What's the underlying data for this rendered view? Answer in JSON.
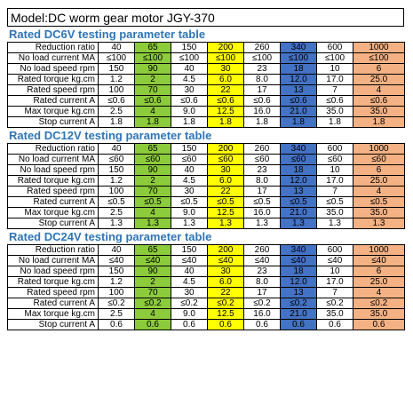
{
  "model_title": "Model:DC worm gear motor JGY-370",
  "column_colors": [
    "",
    "#8CCB3B",
    "",
    "#FFFF00",
    "",
    "#4472C4",
    "",
    "#F4B183"
  ],
  "sections": [
    {
      "title": "Rated DC6V testing parameter table",
      "rows": [
        {
          "label": "Reduction ratio",
          "values": [
            "40",
            "65",
            "150",
            "200",
            "260",
            "340",
            "600",
            "1000"
          ]
        },
        {
          "label": "No load current MA",
          "values": [
            "≤100",
            "≤100",
            "≤100",
            "≤100",
            "≤100",
            "≤100",
            "≤100",
            "≤100"
          ]
        },
        {
          "label": "No load speed rpm",
          "values": [
            "150",
            "90",
            "40",
            "30",
            "23",
            "18",
            "10",
            "6"
          ]
        },
        {
          "label": "Rated torque kg.cm",
          "values": [
            "1.2",
            "2",
            "4.5",
            "6.0",
            "8.0",
            "12.0",
            "17.0",
            "25.0"
          ]
        },
        {
          "label": "Rated speed rpm",
          "values": [
            "100",
            "70",
            "30",
            "22",
            "17",
            "13",
            "7",
            "4"
          ]
        },
        {
          "label": "Rated current A",
          "values": [
            "≤0.6",
            "≤0.6",
            "≤0.6",
            "≤0.6",
            "≤0.6",
            "≤0.6",
            "≤0.6",
            "≤0.6"
          ]
        },
        {
          "label": "Max torque kg.cm",
          "values": [
            "2.5",
            "4",
            "9.0",
            "12.5",
            "16.0",
            "21.0",
            "35.0",
            "35.0"
          ]
        },
        {
          "label": "Stop current A",
          "values": [
            "1.8",
            "1.8",
            "1.8",
            "1.8",
            "1.8",
            "1.8",
            "1.8",
            "1.8"
          ]
        }
      ]
    },
    {
      "title": "Rated DC12V testing parameter table",
      "rows": [
        {
          "label": "Reduction ratio",
          "values": [
            "40",
            "65",
            "150",
            "200",
            "260",
            "340",
            "600",
            "1000"
          ]
        },
        {
          "label": "No load current MA",
          "values": [
            "≤60",
            "≤60",
            "≤60",
            "≤60",
            "≤60",
            "≤60",
            "≤60",
            "≤60"
          ]
        },
        {
          "label": "No load speed rpm",
          "values": [
            "150",
            "90",
            "40",
            "30",
            "23",
            "18",
            "10",
            "6"
          ]
        },
        {
          "label": "Rated torque kg.cm",
          "values": [
            "1.2",
            "2",
            "4.5",
            "6.0",
            "8.0",
            "12.0",
            "17.0",
            "25.0"
          ]
        },
        {
          "label": "Rated speed rpm",
          "values": [
            "100",
            "70",
            "30",
            "22",
            "17",
            "13",
            "7",
            "4"
          ]
        },
        {
          "label": "Rated current A",
          "values": [
            "≤0.5",
            "≤0.5",
            "≤0.5",
            "≤0.5",
            "≤0.5",
            "≤0.5",
            "≤0.5",
            "≤0.5"
          ]
        },
        {
          "label": "Max torque kg.cm",
          "values": [
            "2.5",
            "4",
            "9.0",
            "12.5",
            "16.0",
            "21.0",
            "35.0",
            "35.0"
          ]
        },
        {
          "label": "Stop current A",
          "values": [
            "1.3",
            "1.3",
            "1.3",
            "1.3",
            "1.3",
            "1.3",
            "1.3",
            "1.3"
          ]
        }
      ]
    },
    {
      "title": "Rated DC24V testing parameter table",
      "rows": [
        {
          "label": "Reduction ratio",
          "values": [
            "40",
            "65",
            "150",
            "200",
            "260",
            "340",
            "600",
            "1000"
          ]
        },
        {
          "label": "No load current MA",
          "values": [
            "≤40",
            "≤40",
            "≤40",
            "≤40",
            "≤40",
            "≤40",
            "≤40",
            "≤40"
          ]
        },
        {
          "label": "No load speed rpm",
          "values": [
            "150",
            "90",
            "40",
            "30",
            "23",
            "18",
            "10",
            "6"
          ]
        },
        {
          "label": "Rated torque kg.cm",
          "values": [
            "1.2",
            "2",
            "4.5",
            "6.0",
            "8.0",
            "12.0",
            "17.0",
            "25.0"
          ]
        },
        {
          "label": "Rated speed rpm",
          "values": [
            "100",
            "70",
            "30",
            "22",
            "17",
            "13",
            "7",
            "4"
          ]
        },
        {
          "label": "Rated current A",
          "values": [
            "≤0.2",
            "≤0.2",
            "≤0.2",
            "≤0.2",
            "≤0.2",
            "≤0.2",
            "≤0.2",
            "≤0.2"
          ]
        },
        {
          "label": "Max torque kg.cm",
          "values": [
            "2.5",
            "4",
            "9.0",
            "12.5",
            "16.0",
            "21.0",
            "35.0",
            "35.0"
          ]
        },
        {
          "label": "Stop current A",
          "values": [
            "0.6",
            "0.6",
            "0.6",
            "0.6",
            "0.6",
            "0.6",
            "0.6",
            "0.6"
          ]
        }
      ]
    }
  ]
}
